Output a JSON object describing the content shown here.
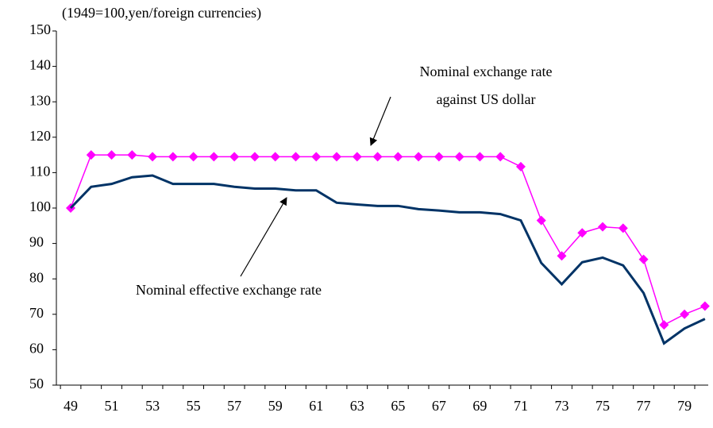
{
  "chart_data": {
    "type": "line",
    "subtitle": "(1949=100,yen/foreign currencies)",
    "categories": [
      "49",
      null,
      "51",
      null,
      "53",
      null,
      "55",
      null,
      "57",
      null,
      "59",
      null,
      "61",
      null,
      "63",
      null,
      "65",
      null,
      "67",
      null,
      "69",
      null,
      "71",
      null,
      "73",
      null,
      "75",
      null,
      "77",
      null,
      "79",
      null
    ],
    "series": [
      {
        "color": "#ff00ff",
        "marker": "diamond",
        "values": [
          100,
          115,
          115,
          115,
          114.5,
          114.5,
          114.5,
          114.5,
          114.5,
          114.5,
          114.5,
          114.5,
          114.5,
          114.5,
          114.5,
          114.5,
          114.5,
          114.5,
          114.5,
          114.5,
          114.5,
          114.5,
          111.7,
          96.5,
          86.5,
          93,
          94.7,
          94.3,
          85.5,
          67,
          70,
          72.3
        ]
      },
      {
        "color": "#003366",
        "marker": "none",
        "values": [
          100,
          106,
          106.8,
          108.7,
          109.2,
          106.8,
          106.8,
          106.8,
          106,
          105.5,
          105.5,
          105,
          105,
          101.5,
          101,
          100.6,
          100.6,
          99.7,
          99.3,
          98.8,
          98.8,
          98.3,
          96.5,
          84.5,
          78.5,
          84.7,
          86,
          83.8,
          76,
          61.8,
          66,
          68.7
        ]
      }
    ],
    "annotations": [
      {
        "lines": [
          "Nominal exchange rate",
          "against US dollar"
        ]
      },
      {
        "lines": [
          "Nominal effective exchange rate"
        ]
      }
    ],
    "ylim": [
      50,
      150
    ],
    "yticks": [
      50,
      60,
      70,
      80,
      90,
      100,
      110,
      120,
      130,
      140,
      150
    ],
    "grid": false
  }
}
